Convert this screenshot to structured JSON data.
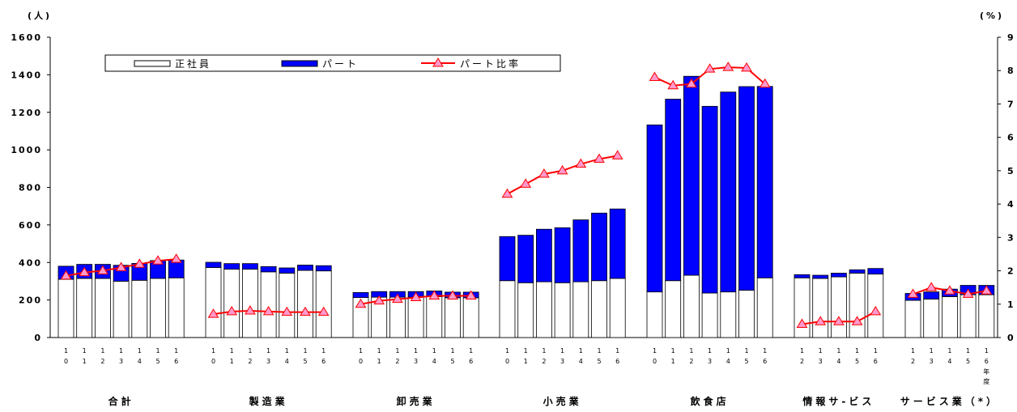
{
  "chart_data": {
    "type": "bar",
    "stacked": true,
    "left_axis_unit": "(人)",
    "right_axis_unit": "(%)",
    "left_ylim": [
      0,
      1600
    ],
    "left_ticks": [
      0,
      200,
      400,
      600,
      800,
      1000,
      1200,
      1400,
      1600
    ],
    "right_ylim": [
      0,
      9
    ],
    "right_ticks": [
      0,
      1,
      2,
      3,
      4,
      5,
      6,
      7,
      8,
      9
    ],
    "grid": false,
    "legend_position": "top-left",
    "legend": [
      "正社員",
      "パート",
      "パート比率"
    ],
    "colors": {
      "seishain": "#ffffff",
      "part": "#0000ff",
      "ratio_line": "#ff0000",
      "ratio_marker": "#ff99cc"
    },
    "groups": [
      {
        "name": "合計",
        "years": [
          "10",
          "11",
          "12",
          "13",
          "14",
          "15",
          "16"
        ],
        "seishain": [
          310,
          315,
          315,
          300,
          305,
          315,
          318
        ],
        "part": [
          70,
          75,
          75,
          85,
          90,
          95,
          95
        ],
        "ratio": [
          1.85,
          1.95,
          2.0,
          2.1,
          2.2,
          2.3,
          2.35
        ]
      },
      {
        "name": "製造業",
        "years": [
          "10",
          "11",
          "12",
          "13",
          "14",
          "15",
          "16"
        ],
        "seishain": [
          373,
          364,
          364,
          350,
          343,
          358,
          355
        ],
        "part": [
          28,
          30,
          30,
          28,
          28,
          28,
          28
        ],
        "ratio": [
          0.7,
          0.78,
          0.8,
          0.78,
          0.76,
          0.76,
          0.76
        ]
      },
      {
        "name": "卸売業",
        "years": [
          "10",
          "11",
          "12",
          "13",
          "14",
          "15",
          "16"
        ],
        "seishain": [
          213,
          215,
          215,
          215,
          218,
          212,
          212
        ],
        "part": [
          27,
          30,
          30,
          30,
          30,
          30,
          30
        ],
        "ratio": [
          1.0,
          1.1,
          1.15,
          1.2,
          1.25,
          1.25,
          1.25
        ]
      },
      {
        "name": "小売業",
        "years": [
          "10",
          "11",
          "12",
          "13",
          "14",
          "15",
          "16"
        ],
        "seishain": [
          303,
          292,
          297,
          292,
          297,
          303,
          315
        ],
        "part": [
          235,
          253,
          280,
          293,
          330,
          360,
          370
        ],
        "ratio": [
          4.3,
          4.6,
          4.9,
          5.0,
          5.2,
          5.35,
          5.45
        ]
      },
      {
        "name": "飲食店",
        "years": [
          "10",
          "11",
          "12",
          "13",
          "14",
          "15",
          "16"
        ],
        "seishain": [
          243,
          303,
          332,
          237,
          243,
          252,
          318
        ],
        "part": [
          890,
          967,
          1060,
          995,
          1065,
          1085,
          1020
        ],
        "ratio": [
          7.8,
          7.55,
          7.6,
          8.05,
          8.1,
          8.08,
          7.6
        ]
      },
      {
        "name": "情報サ-ビス",
        "years": [
          "12",
          "13",
          "14",
          "15",
          "16"
        ],
        "seishain": [
          318,
          315,
          323,
          343,
          338
        ],
        "part": [
          17,
          17,
          20,
          18,
          30
        ],
        "ratio": [
          0.4,
          0.48,
          0.48,
          0.48,
          0.78
        ]
      },
      {
        "name": "サービス業（*）",
        "years": [
          "12",
          "13",
          "14",
          "15",
          "16"
        ],
        "seishain": [
          198,
          205,
          218,
          228,
          228
        ],
        "part": [
          37,
          38,
          40,
          50,
          50
        ],
        "ratio": [
          1.3,
          1.5,
          1.4,
          1.3,
          1.4
        ]
      }
    ],
    "last_tick_suffix": "年度"
  }
}
